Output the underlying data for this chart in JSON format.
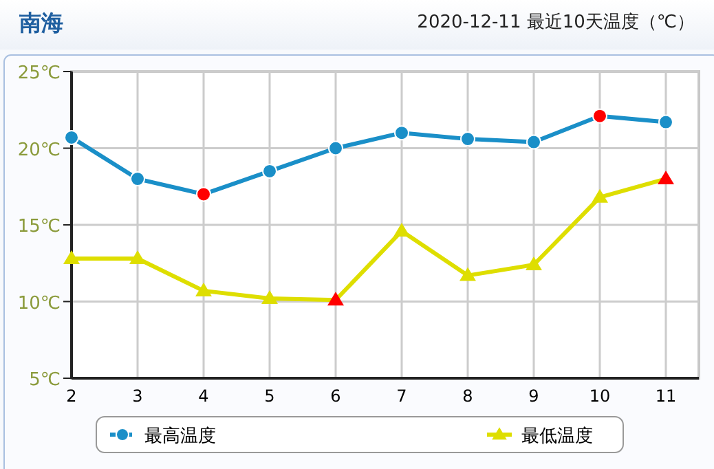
{
  "chart_data": {
    "type": "line",
    "title": "南海",
    "subtitle": "2020-12-11 最近10天温度（℃）",
    "categories": [
      "2",
      "3",
      "4",
      "5",
      "6",
      "7",
      "8",
      "9",
      "10",
      "11"
    ],
    "series": [
      {
        "name": "最高温度",
        "color": "#1a8fc8",
        "marker": "circle",
        "colors": [
          "#1a8fc8",
          "#1a8fc8",
          "#ff0000",
          "#1a8fc8",
          "#1a8fc8",
          "#1a8fc8",
          "#1a8fc8",
          "#1a8fc8",
          "#ff0000",
          "#1a8fc8"
        ],
        "values": [
          20.7,
          18.0,
          17.0,
          18.5,
          20.0,
          21.0,
          20.6,
          20.4,
          22.1,
          21.7
        ]
      },
      {
        "name": "最低温度",
        "color": "#dede00",
        "marker": "triangle",
        "colors": [
          "#dede00",
          "#dede00",
          "#dede00",
          "#dede00",
          "#ff0000",
          "#dede00",
          "#dede00",
          "#dede00",
          "#dede00",
          "#ff0000"
        ],
        "values": [
          12.8,
          12.8,
          10.7,
          10.2,
          10.1,
          14.6,
          11.7,
          12.4,
          16.8,
          18.0
        ]
      }
    ],
    "ylim": [
      5,
      25
    ],
    "yticks": [
      {
        "value": 5,
        "label": "5℃"
      },
      {
        "value": 10,
        "label": "10℃"
      },
      {
        "value": 15,
        "label": "15℃"
      },
      {
        "value": 20,
        "label": "20℃"
      },
      {
        "value": 25,
        "label": "25℃"
      }
    ],
    "grid": true,
    "legend": "bottom"
  }
}
